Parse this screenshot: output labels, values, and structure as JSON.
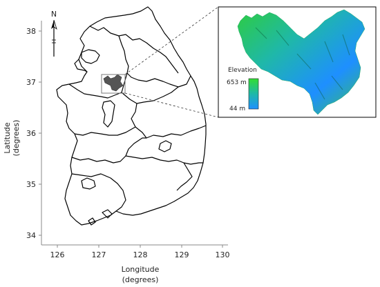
{
  "map": {
    "north_label": "N",
    "x_axis": {
      "title_line1": "Longitude",
      "title_line2": "(degrees)",
      "ticks": [
        "126",
        "127",
        "128",
        "129",
        "130"
      ]
    },
    "y_axis": {
      "title_line1": "Latitude",
      "title_line2": "(degrees)",
      "ticks": [
        "38",
        "37",
        "36",
        "35",
        "34"
      ]
    },
    "study_area_fill": "#555555",
    "boundary_color": "#000000"
  },
  "inset": {
    "legend_title": "Elevation",
    "legend_max": "653 m",
    "legend_min": "44 m",
    "colors": {
      "low": "#1e90ff",
      "mid": "#1fb8a8",
      "high": "#2ecc40"
    }
  }
}
